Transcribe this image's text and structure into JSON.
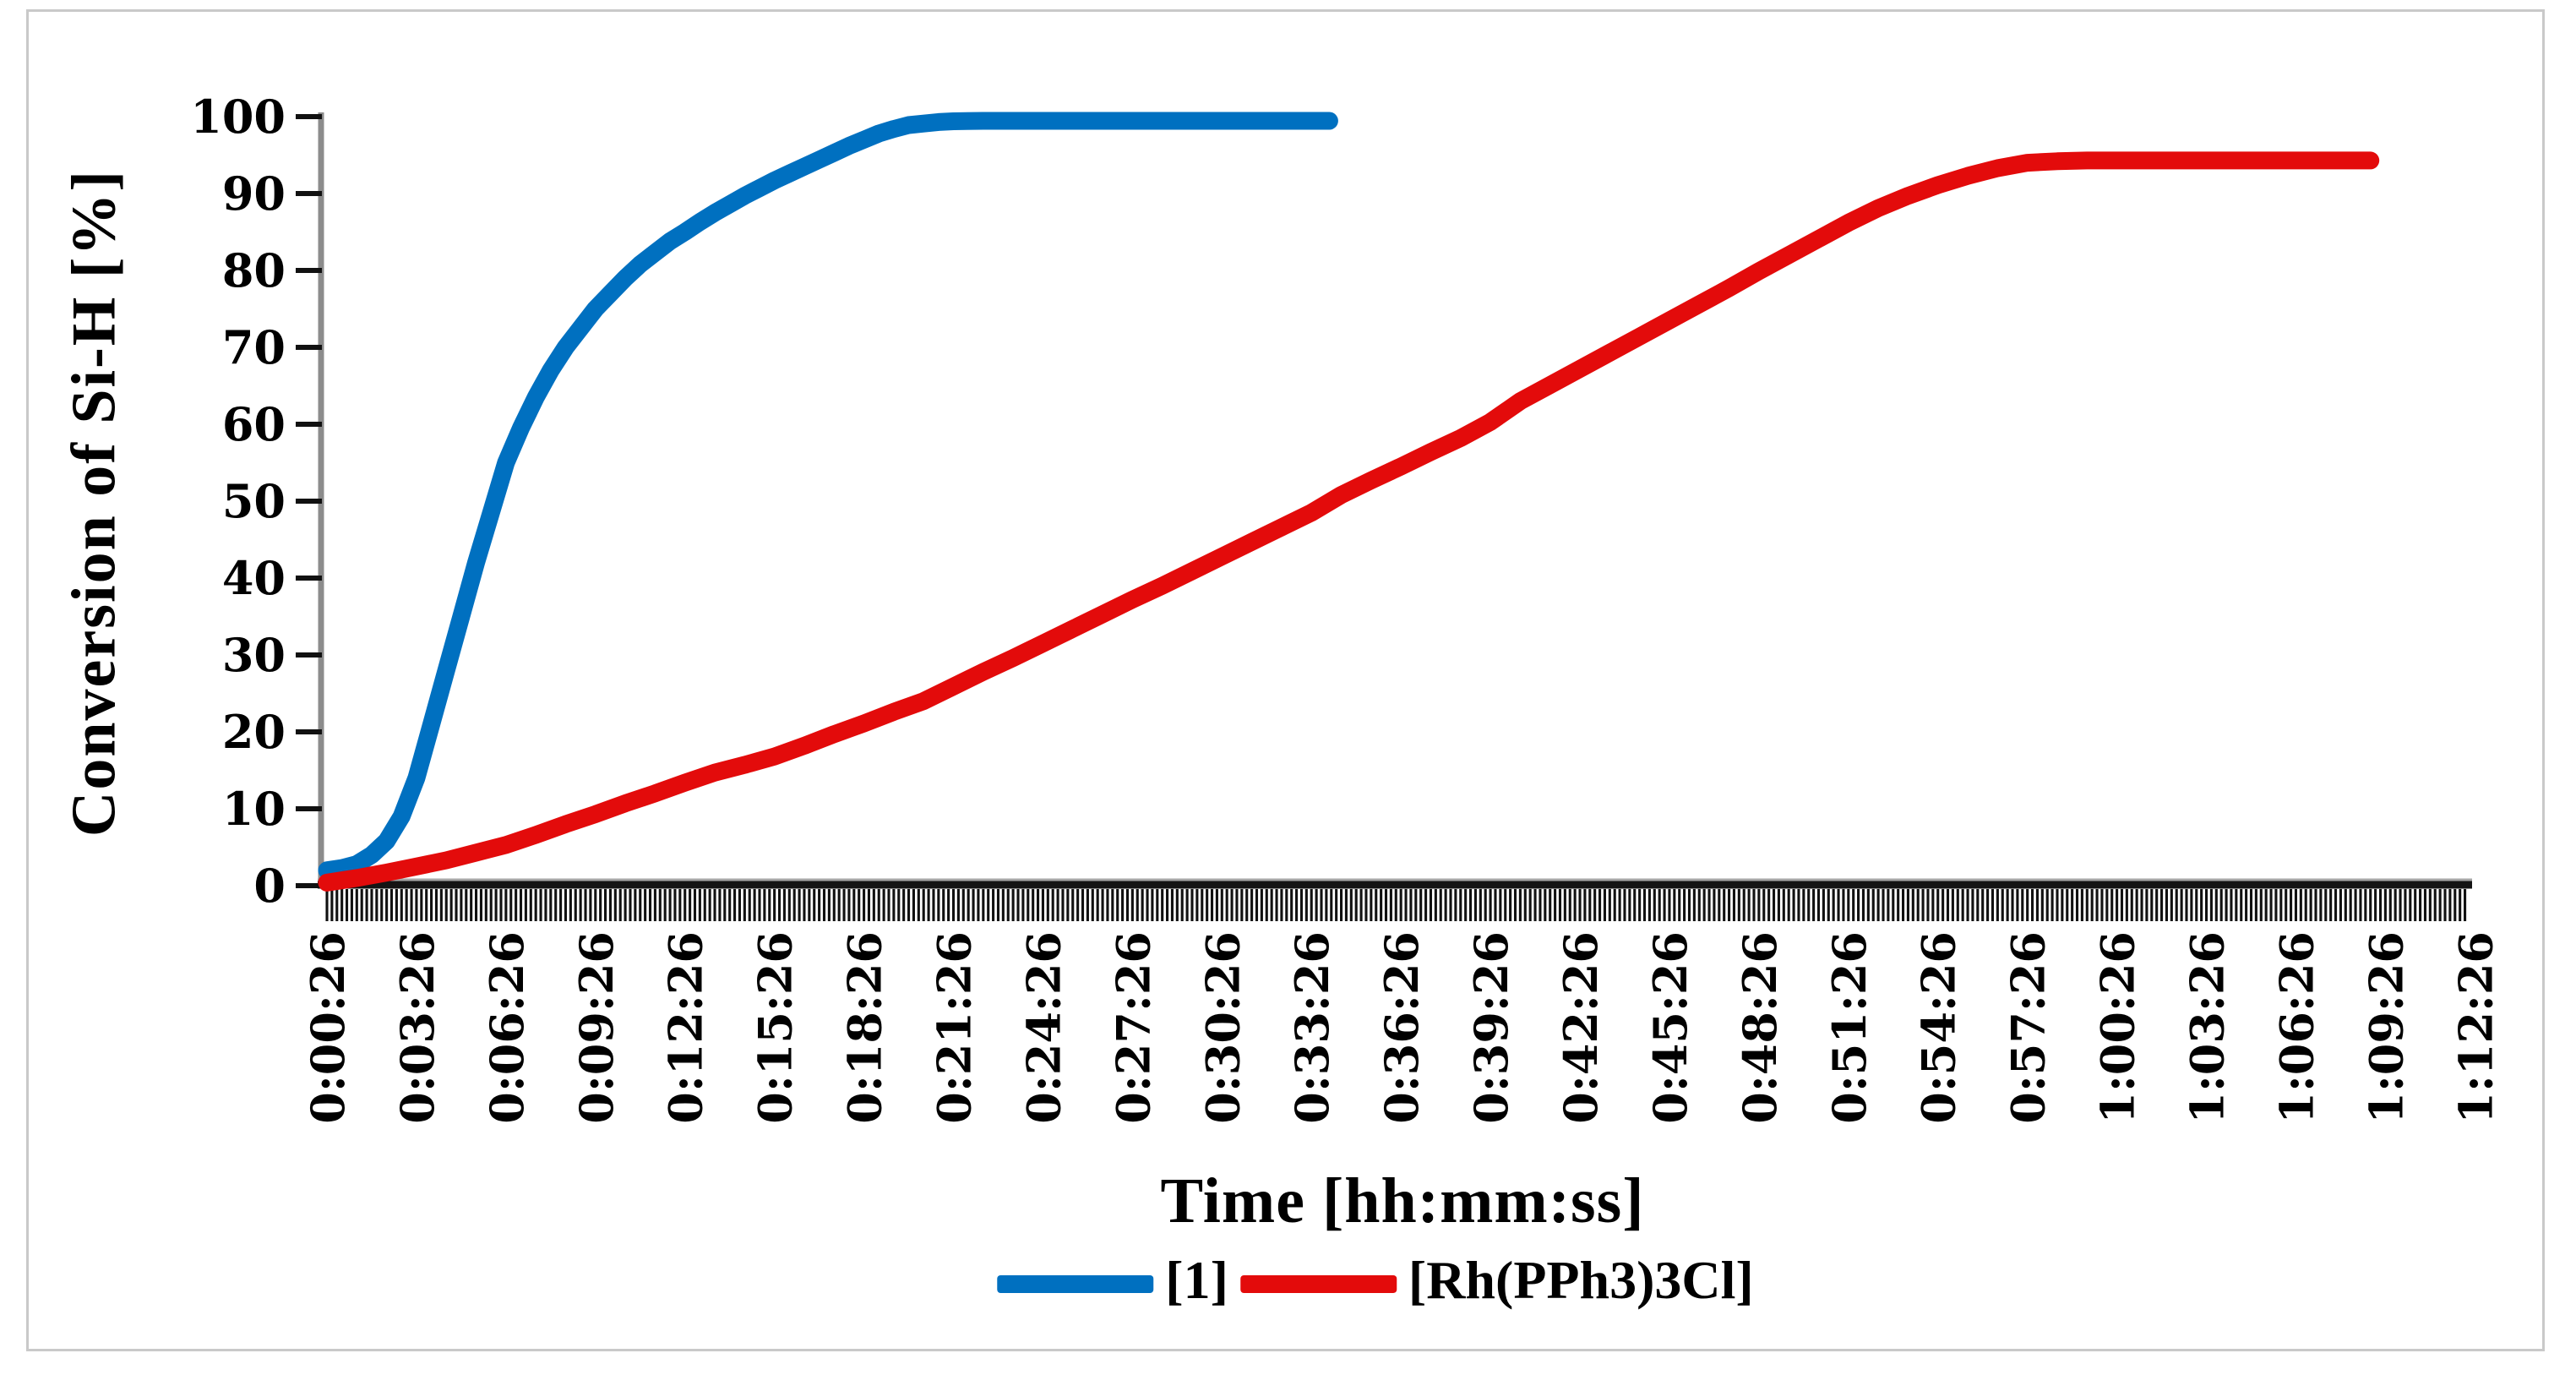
{
  "figure": {
    "y_axis_title": "Conversion of Si-H [%]",
    "x_axis_title": "Time [hh:mm:ss]"
  },
  "chart_data": {
    "type": "line",
    "title": "",
    "xlabel": "Time [hh:mm:ss]",
    "ylabel": "Conversion of Si-H [%]",
    "ylim": [
      0,
      100
    ],
    "y_ticks": [
      0,
      10,
      20,
      30,
      40,
      50,
      60,
      70,
      80,
      90,
      100
    ],
    "x_tick_labels": [
      "0:00:26",
      "0:03:26",
      "0:06:26",
      "0:09:26",
      "0:12:26",
      "0:15:26",
      "0:18:26",
      "0:21:26",
      "0:24:26",
      "0:27:26",
      "0:30:26",
      "0:33:26",
      "0:36:26",
      "0:39:26",
      "0:42:26",
      "0:45:26",
      "0:48:26",
      "0:51:26",
      "0:54:26",
      "0:57:26",
      "1:00:26",
      "1:03:26",
      "1:06:26",
      "1:09:26",
      "1:12:26"
    ],
    "x_label_interval_minutes": 3,
    "x_minor_tick_interval_seconds": 10,
    "x_axis_minutes_range": [
      0,
      71.67
    ],
    "grid": false,
    "legend_position": "bottom",
    "colors": {
      "axis_line": "#8C8C8C",
      "axis_band": "#141414",
      "tick": "#111111",
      "text": "#000000",
      "frame": "#C9C9C9"
    },
    "series": [
      {
        "name": "[1]",
        "color": "#0070C0",
        "points_t_min_vs_pct": [
          [
            0,
            2
          ],
          [
            0.5,
            2.3
          ],
          [
            1,
            2.8
          ],
          [
            1.5,
            4
          ],
          [
            2,
            5.8
          ],
          [
            2.5,
            9
          ],
          [
            3,
            14
          ],
          [
            3.5,
            21
          ],
          [
            4,
            28
          ],
          [
            4.5,
            35
          ],
          [
            5,
            42
          ],
          [
            5.5,
            48.5
          ],
          [
            6,
            55
          ],
          [
            6.5,
            59.5
          ],
          [
            7,
            63.5
          ],
          [
            7.5,
            67
          ],
          [
            8,
            70
          ],
          [
            8.5,
            72.5
          ],
          [
            9,
            75
          ],
          [
            9.5,
            77
          ],
          [
            10,
            79
          ],
          [
            10.5,
            80.8
          ],
          [
            11,
            82.3
          ],
          [
            11.5,
            83.8
          ],
          [
            12,
            85
          ],
          [
            12.5,
            86.3
          ],
          [
            13,
            87.5
          ],
          [
            13.5,
            88.6
          ],
          [
            14,
            89.7
          ],
          [
            14.5,
            90.7
          ],
          [
            15,
            91.7
          ],
          [
            15.5,
            92.6
          ],
          [
            16,
            93.5
          ],
          [
            16.5,
            94.4
          ],
          [
            17,
            95.3
          ],
          [
            17.5,
            96.2
          ],
          [
            18,
            97
          ],
          [
            18.5,
            97.8
          ],
          [
            19,
            98.4
          ],
          [
            19.5,
            98.9
          ],
          [
            20,
            99.1
          ],
          [
            20.5,
            99.3
          ],
          [
            21,
            99.4
          ],
          [
            22,
            99.45
          ],
          [
            24,
            99.45
          ],
          [
            27,
            99.45
          ],
          [
            30,
            99.45
          ],
          [
            33.6,
            99.45
          ]
        ]
      },
      {
        "name": "[Rh(PPh3)3Cl]",
        "color": "#E30B0B",
        "points_t_min_vs_pct": [
          [
            0,
            0.4
          ],
          [
            1,
            1
          ],
          [
            2,
            1.7
          ],
          [
            3,
            2.5
          ],
          [
            4,
            3.3
          ],
          [
            5,
            4.3
          ],
          [
            6,
            5.3
          ],
          [
            7,
            6.6
          ],
          [
            8,
            8
          ],
          [
            9,
            9.3
          ],
          [
            10,
            10.7
          ],
          [
            11,
            12
          ],
          [
            12,
            13.4
          ],
          [
            13,
            14.7
          ],
          [
            14,
            15.7
          ],
          [
            15,
            16.8
          ],
          [
            16,
            18.2
          ],
          [
            17,
            19.7
          ],
          [
            18,
            21.1
          ],
          [
            19,
            22.6
          ],
          [
            20,
            24
          ],
          [
            21,
            25.9
          ],
          [
            22,
            27.8
          ],
          [
            23,
            29.6
          ],
          [
            24,
            31.5
          ],
          [
            25,
            33.4
          ],
          [
            26,
            35.3
          ],
          [
            27,
            37.2
          ],
          [
            28,
            39
          ],
          [
            29,
            40.9
          ],
          [
            30,
            42.8
          ],
          [
            31,
            44.7
          ],
          [
            32,
            46.6
          ],
          [
            33,
            48.5
          ],
          [
            34,
            50.8
          ],
          [
            35,
            52.7
          ],
          [
            36,
            54.5
          ],
          [
            37,
            56.4
          ],
          [
            38,
            58.2
          ],
          [
            39,
            60.3
          ],
          [
            40,
            63
          ],
          [
            41,
            65.1
          ],
          [
            42,
            67.2
          ],
          [
            43,
            69.3
          ],
          [
            44,
            71.4
          ],
          [
            45,
            73.5
          ],
          [
            46,
            75.6
          ],
          [
            47,
            77.7
          ],
          [
            48,
            79.9
          ],
          [
            49,
            82
          ],
          [
            50,
            84.1
          ],
          [
            51,
            86.2
          ],
          [
            52,
            88.1
          ],
          [
            53,
            89.7
          ],
          [
            54,
            91.1
          ],
          [
            55,
            92.3
          ],
          [
            56,
            93.3
          ],
          [
            57,
            94
          ],
          [
            58,
            94.2
          ],
          [
            59,
            94.3
          ],
          [
            60,
            94.3
          ],
          [
            62,
            94.3
          ],
          [
            64,
            94.3
          ],
          [
            66,
            94.3
          ],
          [
            68.5,
            94.3
          ]
        ]
      }
    ]
  }
}
